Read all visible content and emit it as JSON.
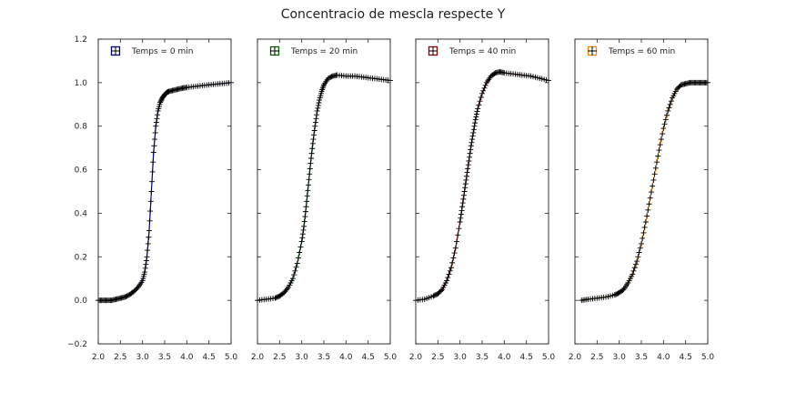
{
  "chart_data": {
    "type": "scatter",
    "title": "Concentracio de mescla respecte Y",
    "xlim": [
      2.0,
      5.0
    ],
    "ylim": [
      -0.2,
      1.2
    ],
    "xticks": [
      2.0,
      2.5,
      3.0,
      3.5,
      4.0,
      4.5,
      5.0
    ],
    "xtick_labels": [
      "2.0",
      "2.5",
      "3.0",
      "3.5",
      "4.0",
      "4.5",
      "5.0"
    ],
    "yticks": [
      -0.2,
      0.0,
      0.2,
      0.4,
      0.6,
      0.8,
      1.0,
      1.2
    ],
    "ytick_labels": [
      "−0.2",
      "0.0",
      "0.2",
      "0.4",
      "0.6",
      "0.8",
      "1.0",
      "1.2"
    ],
    "xlabel": "",
    "ylabel": "",
    "grid": false,
    "sharey": true,
    "legend_position": "top-left",
    "marker": "errorbar-plus",
    "series": [
      {
        "name": "Temps = 0 min",
        "color": "#00008b",
        "x": [
          2.0,
          2.1,
          2.2,
          2.3,
          2.4,
          2.5,
          2.6,
          2.7,
          2.8,
          2.9,
          3.0,
          3.05,
          3.1,
          3.15,
          3.2,
          3.25,
          3.3,
          3.35,
          3.4,
          3.45,
          3.5,
          3.55,
          3.6,
          3.7,
          3.8,
          3.9,
          4.0,
          4.2,
          4.4,
          4.6,
          4.8,
          5.0
        ],
        "y": [
          0.0,
          0.0,
          0.0,
          0.0,
          0.005,
          0.01,
          0.015,
          0.025,
          0.04,
          0.06,
          0.09,
          0.13,
          0.2,
          0.32,
          0.5,
          0.68,
          0.8,
          0.87,
          0.91,
          0.93,
          0.945,
          0.955,
          0.96,
          0.965,
          0.97,
          0.975,
          0.978,
          0.983,
          0.988,
          0.992,
          0.996,
          1.0
        ]
      },
      {
        "name": "Temps = 20 min",
        "color": "#006400",
        "x": [
          2.0,
          2.2,
          2.4,
          2.5,
          2.6,
          2.7,
          2.8,
          2.9,
          3.0,
          3.05,
          3.1,
          3.15,
          3.2,
          3.25,
          3.3,
          3.35,
          3.4,
          3.45,
          3.5,
          3.6,
          3.7,
          3.8,
          4.0,
          4.2,
          4.4,
          4.6,
          4.8,
          5.0
        ],
        "y": [
          0.0,
          0.005,
          0.01,
          0.02,
          0.035,
          0.06,
          0.1,
          0.17,
          0.27,
          0.34,
          0.43,
          0.53,
          0.63,
          0.72,
          0.8,
          0.87,
          0.92,
          0.96,
          0.99,
          1.02,
          1.03,
          1.035,
          1.03,
          1.03,
          1.025,
          1.02,
          1.015,
          1.01
        ]
      },
      {
        "name": "Temps = 40 min",
        "color": "#8b0000",
        "x": [
          2.0,
          2.2,
          2.4,
          2.5,
          2.6,
          2.7,
          2.8,
          2.9,
          3.0,
          3.05,
          3.1,
          3.15,
          3.2,
          3.25,
          3.3,
          3.35,
          3.4,
          3.5,
          3.6,
          3.7,
          3.8,
          3.9,
          4.0,
          4.2,
          4.4,
          4.6,
          4.8,
          5.0
        ],
        "y": [
          0.0,
          0.005,
          0.02,
          0.03,
          0.05,
          0.09,
          0.15,
          0.24,
          0.36,
          0.43,
          0.5,
          0.57,
          0.64,
          0.71,
          0.77,
          0.83,
          0.88,
          0.95,
          1.0,
          1.03,
          1.045,
          1.05,
          1.045,
          1.04,
          1.035,
          1.03,
          1.02,
          1.01
        ]
      },
      {
        "name": "Temps = 60 min",
        "color": "#ff8c00",
        "x": [
          2.15,
          2.3,
          2.5,
          2.7,
          2.9,
          3.0,
          3.1,
          3.2,
          3.3,
          3.4,
          3.5,
          3.6,
          3.7,
          3.8,
          3.9,
          4.0,
          4.1,
          4.2,
          4.3,
          4.4,
          4.5,
          4.6,
          4.7,
          4.8,
          4.9,
          5.0
        ],
        "y": [
          0.0,
          0.005,
          0.01,
          0.015,
          0.025,
          0.035,
          0.05,
          0.08,
          0.12,
          0.18,
          0.26,
          0.36,
          0.47,
          0.58,
          0.69,
          0.79,
          0.87,
          0.93,
          0.97,
          0.99,
          0.995,
          1.0,
          1.0,
          1.0,
          1.0,
          1.0
        ]
      }
    ]
  }
}
